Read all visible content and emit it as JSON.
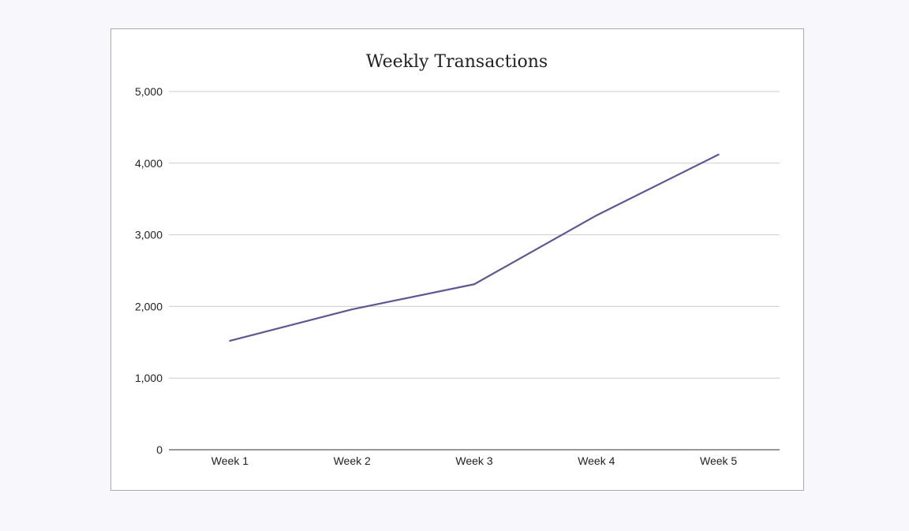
{
  "chart_data": {
    "type": "line",
    "title": "Weekly Transactions",
    "categories": [
      "Week 1",
      "Week 2",
      "Week 3",
      "Week 4",
      "Week 5"
    ],
    "series": [
      {
        "values": [
          1520,
          1960,
          2310,
          3270,
          4120
        ]
      }
    ],
    "yticks": [
      "0",
      "1,000",
      "2,000",
      "3,000",
      "4,000",
      "5,000"
    ],
    "ylim": [
      0,
      5000
    ],
    "grid": true,
    "legend": "none",
    "colors": {
      "line": "#5c5891"
    }
  }
}
